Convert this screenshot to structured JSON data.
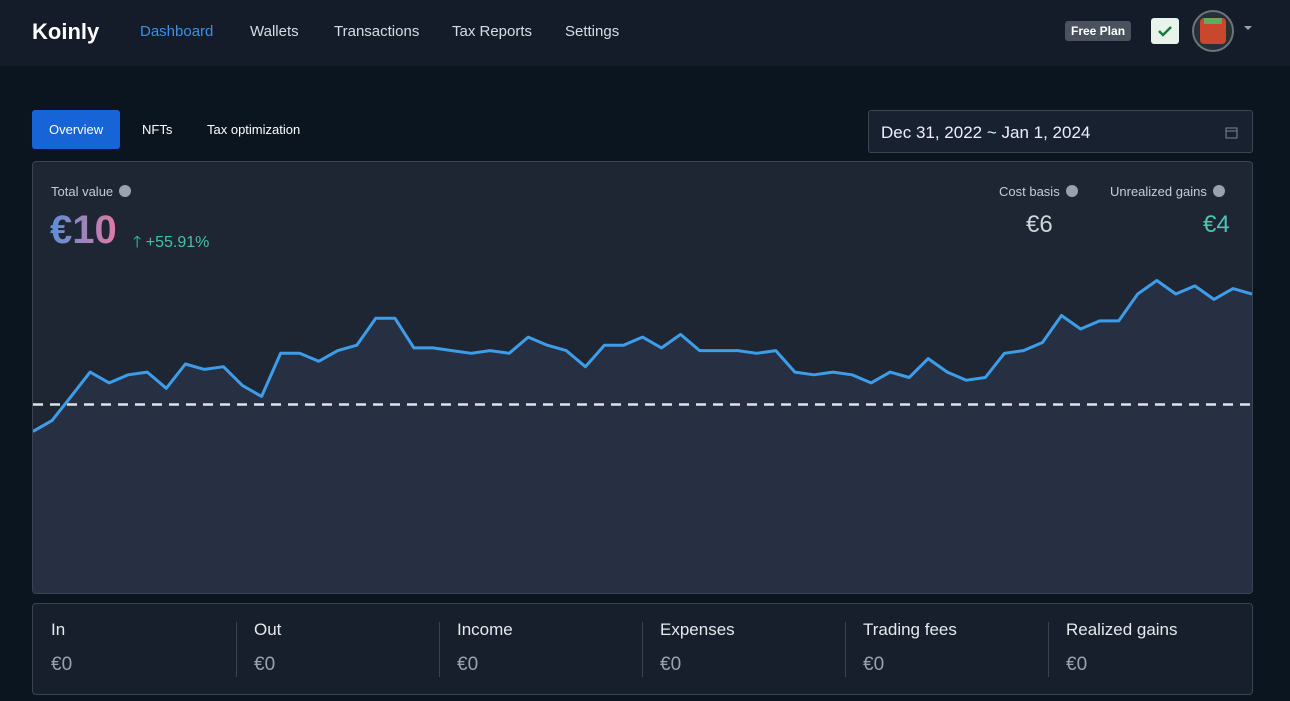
{
  "header": {
    "logo": "Koinly",
    "nav": [
      "Dashboard",
      "Wallets",
      "Transactions",
      "Tax Reports",
      "Settings"
    ],
    "plan": "Free Plan"
  },
  "tabs": [
    "Overview",
    "NFTs",
    "Tax optimization"
  ],
  "date_range": "Dec 31, 2022 ~ Jan 1, 2024",
  "summary": {
    "total_label": "Total value",
    "total_value": "€10",
    "change": "+55.91%",
    "cost_label": "Cost basis",
    "cost_value": "€6",
    "gains_label": "Unrealized gains",
    "gains_value": "€4"
  },
  "chart_data": {
    "type": "line",
    "color": "#3d9de8",
    "ylim": [
      -1,
      15
    ],
    "baseline": 6,
    "values": [
      5.0,
      5.4,
      6.3,
      7.2,
      6.8,
      7.1,
      7.2,
      6.6,
      7.5,
      7.3,
      7.4,
      6.7,
      6.3,
      7.9,
      7.9,
      7.6,
      8.0,
      8.2,
      9.2,
      9.2,
      8.1,
      8.1,
      8.0,
      7.9,
      8.0,
      7.9,
      8.5,
      8.2,
      8.0,
      7.4,
      8.2,
      8.2,
      8.5,
      8.1,
      8.6,
      8.0,
      8.0,
      8.0,
      7.9,
      8.0,
      7.2,
      7.1,
      7.2,
      7.1,
      6.8,
      7.2,
      7.0,
      7.7,
      7.2,
      6.9,
      7.0,
      7.9,
      8.0,
      8.3,
      9.3,
      8.8,
      9.1,
      9.1,
      10.1,
      10.6,
      10.1,
      10.4,
      9.9,
      10.3,
      10.1
    ]
  },
  "stats": [
    {
      "label": "In",
      "value": "€0"
    },
    {
      "label": "Out",
      "value": "€0"
    },
    {
      "label": "Income",
      "value": "€0"
    },
    {
      "label": "Expenses",
      "value": "€0"
    },
    {
      "label": "Trading fees",
      "value": "€0"
    },
    {
      "label": "Realized gains",
      "value": "€0"
    }
  ]
}
